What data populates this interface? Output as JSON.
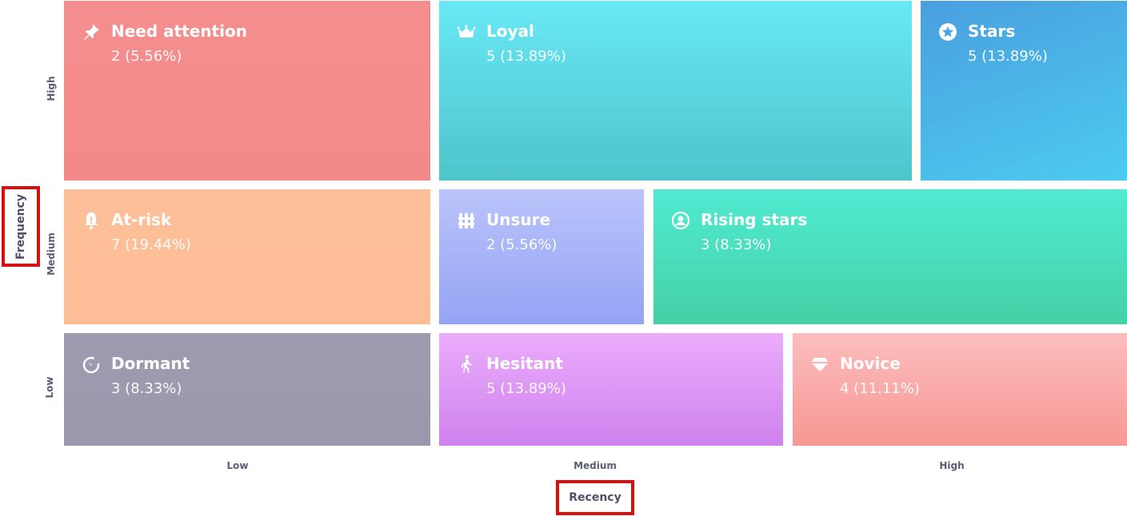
{
  "chart_data": {
    "type": "heatmap",
    "xlabel": "Recency",
    "ylabel": "Frequency",
    "x_ticks": [
      "Low",
      "Medium",
      "High"
    ],
    "y_ticks": [
      "High",
      "Medium",
      "Low"
    ],
    "segments": [
      {
        "name": "Need attention",
        "value": "2 (5.56%)",
        "count": 2,
        "percent": 5.56,
        "icon": "pushpin-icon",
        "recency": "Low",
        "frequency": "High",
        "colors": [
          "#f48e8e",
          "#f38a8a"
        ]
      },
      {
        "name": "Loyal",
        "value": "5 (13.89%)",
        "count": 5,
        "percent": 13.89,
        "icon": "crown-icon",
        "recency": "Medium",
        "frequency": "High",
        "colors": [
          "#68e8f6",
          "#4fc4cb"
        ]
      },
      {
        "name": "Stars",
        "value": "5 (13.89%)",
        "count": 5,
        "percent": 13.89,
        "icon": "star-icon",
        "recency": "High",
        "frequency": "High",
        "colors": [
          "#4a9fdf",
          "#4ccbef"
        ]
      },
      {
        "name": "At-risk",
        "value": "7 (19.44%)",
        "count": 7,
        "percent": 19.44,
        "icon": "bell-alert-icon",
        "recency": "Low",
        "frequency": "Medium",
        "colors": [
          "#fdbf99",
          "#fdbe97"
        ]
      },
      {
        "name": "Unsure",
        "value": "2 (5.56%)",
        "count": 2,
        "percent": 5.56,
        "icon": "fence-icon",
        "recency": "Medium",
        "frequency": "Medium",
        "colors": [
          "#bac4fb",
          "#95a3f4"
        ]
      },
      {
        "name": "Rising stars",
        "value": "3 (8.33%)",
        "count": 3,
        "percent": 8.33,
        "icon": "user-circle-icon",
        "recency": "Medium-High",
        "frequency": "Medium",
        "colors": [
          "#50ebd2",
          "#45d0a6"
        ]
      },
      {
        "name": "Dormant",
        "value": "3 (8.33%)",
        "count": 3,
        "percent": 8.33,
        "icon": "timer-icon",
        "recency": "Low",
        "frequency": "Low",
        "colors": [
          "#9c9baf",
          "#9a98ac"
        ]
      },
      {
        "name": "Hesitant",
        "value": "5 (13.89%)",
        "count": 5,
        "percent": 13.89,
        "icon": "walking-icon",
        "recency": "Medium",
        "frequency": "Low",
        "colors": [
          "#ebacfb",
          "#cf82ef"
        ]
      },
      {
        "name": "Novice",
        "value": "4 (11.11%)",
        "count": 4,
        "percent": 11.11,
        "icon": "diamond-icon",
        "recency": "High",
        "frequency": "Low",
        "colors": [
          "#fcbdbd",
          "#f79894"
        ]
      }
    ]
  }
}
